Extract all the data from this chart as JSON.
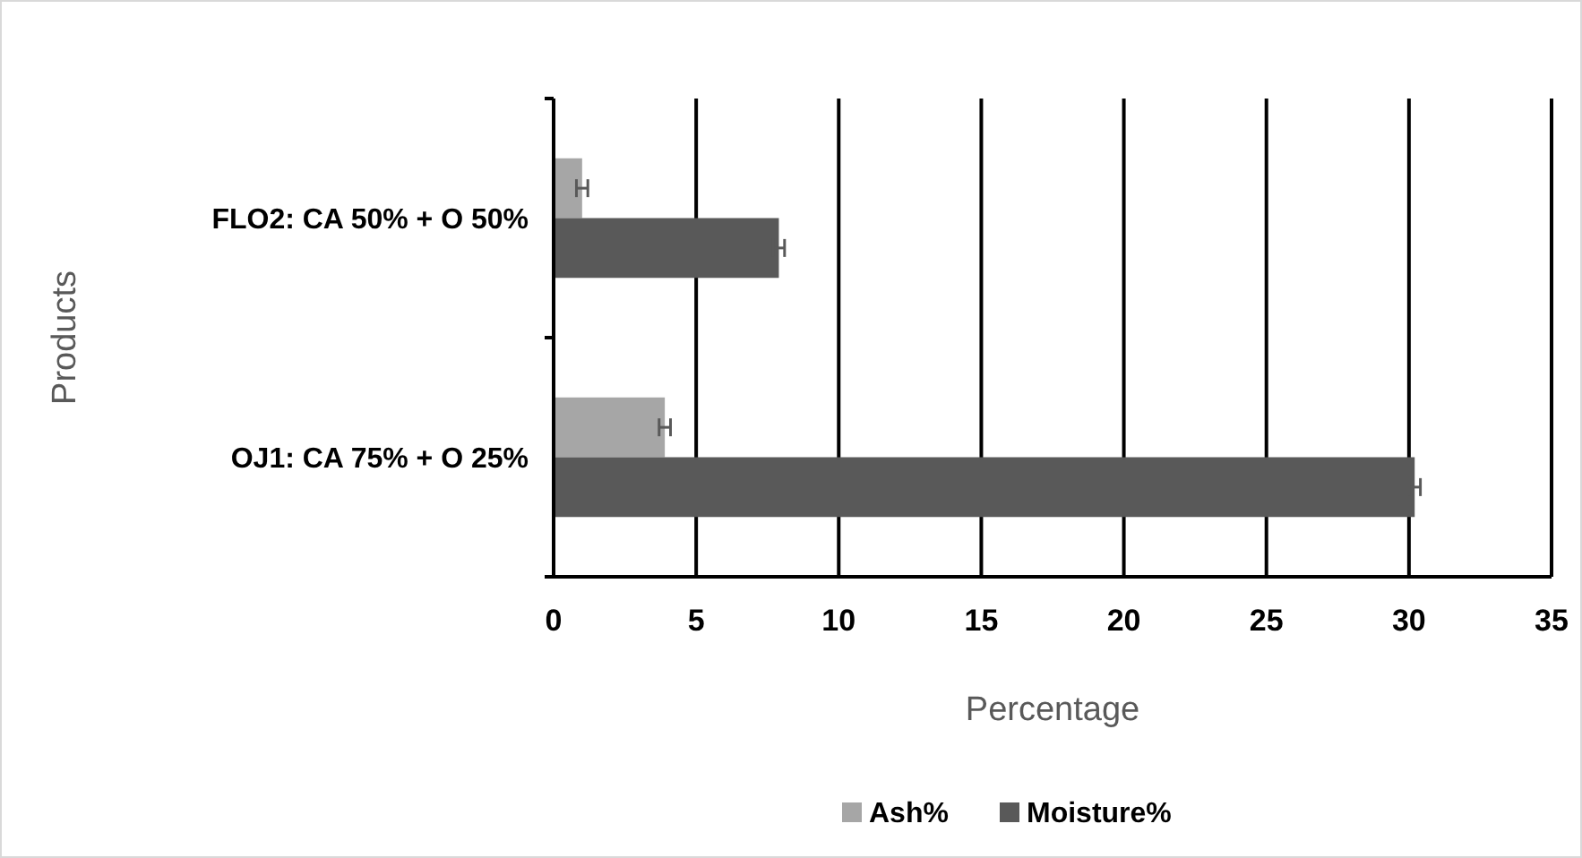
{
  "chart_data": {
    "type": "bar",
    "orientation": "horizontal",
    "xlabel": "Percentage",
    "ylabel": "Products",
    "categories": [
      "FLO2: CA 50% + O 50%",
      "OJ1: CA 75% + O 25%"
    ],
    "series": [
      {
        "name": "Ash%",
        "color": "#a6a6a6",
        "values": [
          1.0,
          3.9
        ],
        "errors": [
          0.2,
          0.2
        ]
      },
      {
        "name": "Moisture%",
        "color": "#595959",
        "values": [
          7.9,
          30.2
        ],
        "errors": [
          0.2,
          0.2
        ]
      }
    ],
    "xlim": [
      0,
      35
    ],
    "xticks": [
      0,
      5,
      10,
      15,
      20,
      25,
      30,
      35
    ],
    "grid": "x",
    "legend": "bottom"
  }
}
